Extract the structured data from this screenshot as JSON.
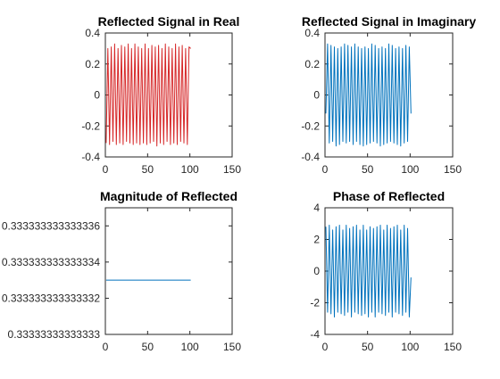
{
  "chart_data": [
    {
      "type": "line",
      "title": "Reflected Signal in Real",
      "xlabel": "",
      "ylabel": "",
      "xlim": [
        0,
        150
      ],
      "ylim": [
        -0.4,
        0.4
      ],
      "xticks": [
        0,
        50,
        100,
        150
      ],
      "yticks": [
        -0.4,
        -0.2,
        0,
        0.2,
        0.4
      ],
      "xtick_labels": [
        "0",
        "50",
        "100",
        "150"
      ],
      "ytick_labels": [
        "-0.4",
        "-0.2",
        "0",
        "0.2",
        "0.4"
      ],
      "grid": false,
      "color": "#d62728",
      "series": [
        {
          "x": [
            1,
            3,
            5,
            7,
            9,
            11,
            13,
            15,
            17,
            19,
            21,
            23,
            25,
            27,
            29,
            31,
            33,
            35,
            37,
            39,
            41,
            43,
            45,
            47,
            49,
            51,
            53,
            55,
            57,
            59,
            61,
            63,
            65,
            67,
            69,
            71,
            73,
            75,
            77,
            79,
            81,
            83,
            85,
            87,
            89,
            91,
            93,
            95,
            97,
            99,
            101
          ],
          "values": [
            -0.31,
            0.3,
            -0.32,
            0.31,
            -0.3,
            0.33,
            -0.32,
            0.3,
            -0.31,
            0.32,
            -0.32,
            0.31,
            -0.3,
            0.33,
            -0.31,
            0.3,
            -0.32,
            0.33,
            -0.31,
            0.31,
            -0.32,
            0.3,
            -0.31,
            0.33,
            -0.32,
            0.3,
            -0.31,
            0.32,
            -0.3,
            0.31,
            -0.33,
            0.32,
            -0.31,
            0.3,
            -0.32,
            0.33,
            -0.3,
            0.31,
            -0.32,
            0.3,
            -0.31,
            0.33,
            -0.32,
            0.31,
            -0.3,
            0.32,
            -0.31,
            0.3,
            -0.32,
            0.31,
            0.3
          ]
        }
      ]
    },
    {
      "type": "line",
      "title": "Reflected Signal in Imaginary",
      "xlabel": "",
      "ylabel": "",
      "xlim": [
        0,
        150
      ],
      "ylim": [
        -0.4,
        0.4
      ],
      "xticks": [
        0,
        50,
        100,
        150
      ],
      "yticks": [
        -0.4,
        -0.2,
        0,
        0.2,
        0.4
      ],
      "xtick_labels": [
        "0",
        "50",
        "100",
        "150"
      ],
      "ytick_labels": [
        "-0.4",
        "-0.2",
        "0",
        "0.2",
        "0.4"
      ],
      "grid": false,
      "color": "#0072bd",
      "series": [
        {
          "x": [
            1,
            3,
            5,
            7,
            9,
            11,
            13,
            15,
            17,
            19,
            21,
            23,
            25,
            27,
            29,
            31,
            33,
            35,
            37,
            39,
            41,
            43,
            45,
            47,
            49,
            51,
            53,
            55,
            57,
            59,
            61,
            63,
            65,
            67,
            69,
            71,
            73,
            75,
            77,
            79,
            81,
            83,
            85,
            87,
            89,
            91,
            93,
            95,
            97,
            99,
            101
          ],
          "values": [
            -0.12,
            0.33,
            -0.31,
            0.32,
            -0.3,
            0.31,
            -0.33,
            0.3,
            -0.32,
            0.31,
            -0.3,
            0.33,
            -0.31,
            0.32,
            -0.3,
            0.31,
            -0.32,
            0.33,
            -0.3,
            0.31,
            -0.32,
            0.3,
            -0.33,
            0.31,
            -0.32,
            0.3,
            -0.31,
            0.33,
            -0.3,
            0.32,
            -0.31,
            0.3,
            -0.33,
            0.31,
            -0.32,
            0.3,
            -0.31,
            0.33,
            -0.3,
            0.32,
            -0.31,
            0.3,
            -0.32,
            0.31,
            -0.33,
            0.3,
            -0.31,
            0.32,
            -0.3,
            0.31,
            -0.12
          ]
        }
      ]
    },
    {
      "type": "line",
      "title": "Magnitude of Reflected",
      "xlabel": "",
      "ylabel": "",
      "xlim": [
        0,
        150
      ],
      "ylim": [
        0.33333333333333,
        0.333333333333337
      ],
      "xticks": [
        0,
        50,
        100,
        150
      ],
      "yticks": [
        0.33333333333333,
        0.333333333333332,
        0.333333333333334,
        0.333333333333336
      ],
      "xtick_labels": [
        "0",
        "50",
        "100",
        "150"
      ],
      "ytick_labels": [
        "0.33333333333333",
        "0.333333333333332",
        "0.333333333333334",
        "0.333333333333336"
      ],
      "grid": false,
      "color": "#0072bd",
      "series": [
        {
          "x": [
            1,
            101
          ],
          "values": [
            0.333333333333333,
            0.333333333333333
          ]
        }
      ]
    },
    {
      "type": "line",
      "title": "Phase of Reflected",
      "xlabel": "",
      "ylabel": "",
      "xlim": [
        0,
        150
      ],
      "ylim": [
        -4,
        4
      ],
      "xticks": [
        0,
        50,
        100,
        150
      ],
      "yticks": [
        -4,
        -2,
        0,
        2,
        4
      ],
      "xtick_labels": [
        "0",
        "50",
        "100",
        "150"
      ],
      "ytick_labels": [
        "-4",
        "-2",
        "0",
        "2",
        "4"
      ],
      "grid": false,
      "color": "#0072bd",
      "series": [
        {
          "x": [
            1,
            3,
            5,
            7,
            9,
            11,
            13,
            15,
            17,
            19,
            21,
            23,
            25,
            27,
            29,
            31,
            33,
            35,
            37,
            39,
            41,
            43,
            45,
            47,
            49,
            51,
            53,
            55,
            57,
            59,
            61,
            63,
            65,
            67,
            69,
            71,
            73,
            75,
            77,
            79,
            81,
            83,
            85,
            87,
            89,
            91,
            93,
            95,
            97,
            99,
            101
          ],
          "values": [
            2.8,
            -2.6,
            2.9,
            -2.7,
            2.6,
            -2.9,
            2.8,
            -2.6,
            2.9,
            -2.7,
            2.6,
            -2.8,
            2.9,
            -2.6,
            2.7,
            -2.9,
            2.8,
            -2.6,
            2.9,
            -2.7,
            2.6,
            -2.8,
            2.9,
            -2.7,
            2.6,
            -2.9,
            2.8,
            -2.6,
            2.7,
            -2.9,
            2.8,
            -2.6,
            2.9,
            -2.7,
            2.6,
            -2.8,
            2.9,
            -2.6,
            2.7,
            -2.9,
            2.8,
            -2.6,
            2.9,
            -2.7,
            2.6,
            -2.8,
            2.9,
            -2.6,
            2.7,
            -2.9,
            -0.4
          ]
        }
      ]
    }
  ]
}
